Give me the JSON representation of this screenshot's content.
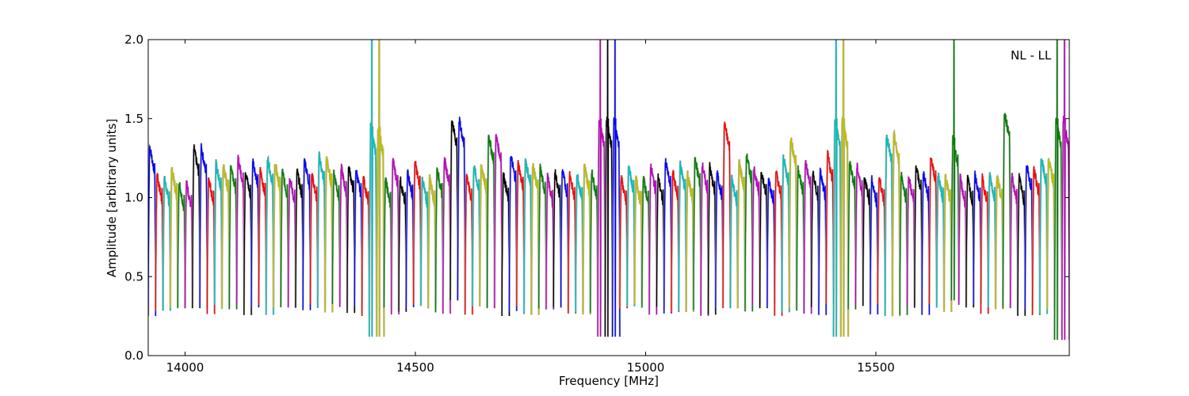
{
  "chart_data": {
    "type": "line",
    "title": "",
    "xlabel": "Frequency [MHz]",
    "ylabel": "Amplitude [arbitrary units]",
    "annotation": "NL - LL",
    "xlim": [
      13920,
      15920
    ],
    "ylim": [
      0.0,
      2.0
    ],
    "xticks": [
      14000,
      14500,
      15000,
      15500
    ],
    "yticks": [
      0.0,
      0.5,
      1.0,
      1.5,
      2.0
    ],
    "xtick_labels": [
      "14000",
      "14500",
      "15000",
      "15500"
    ],
    "ytick_labels": [
      "0.0",
      "0.5",
      "1.0",
      "1.5",
      "2.0"
    ],
    "grid": false,
    "legend": "none",
    "background_series_color": "#b0b0b0",
    "color_cycle": [
      "#0000ff",
      "#ff0000",
      "#00bfbf",
      "#bfbf00",
      "#008000",
      "#bf00bf",
      "#000000"
    ],
    "channel_width_mhz": 16,
    "channel_first_start_mhz": 13920,
    "channel_count": 125,
    "series": [
      {
        "description_key": "bandpass",
        "channels": [
          {
            "start": 13920,
            "end": 13936,
            "level": 1.33,
            "min": 0.25
          },
          {
            "start": 13992,
            "end": 14008,
            "level": 1.1,
            "min": 0.3
          },
          {
            "start": 14024,
            "end": 14040,
            "level": 1.32,
            "min": 0.3
          },
          {
            "start": 14408,
            "end": 14424,
            "level": 1.45,
            "min": 0.12,
            "spike": 2.0
          },
          {
            "start": 14580,
            "end": 14596,
            "level": 1.5,
            "min": 0.35
          },
          {
            "start": 14664,
            "end": 14680,
            "level": 1.4,
            "min": 0.3
          },
          {
            "start": 14904,
            "end": 14936,
            "level": 1.5,
            "min": 0.12,
            "spike": 2.0
          },
          {
            "start": 15168,
            "end": 15184,
            "level": 1.48,
            "min": 0.3
          },
          {
            "start": 15312,
            "end": 15328,
            "level": 1.38,
            "min": 0.3
          },
          {
            "start": 15408,
            "end": 15432,
            "level": 1.5,
            "min": 0.12,
            "spike": 2.0
          },
          {
            "start": 15528,
            "end": 15544,
            "level": 1.4,
            "min": 0.25
          },
          {
            "start": 15664,
            "end": 15680,
            "level": 1.38,
            "min": 0.35,
            "spike": 2.0
          },
          {
            "start": 15776,
            "end": 15792,
            "level": 1.55,
            "min": 0.3
          },
          {
            "start": 15888,
            "end": 15920,
            "level": 1.5,
            "min": 0.1,
            "spike": 2.0
          }
        ]
      }
    ]
  }
}
